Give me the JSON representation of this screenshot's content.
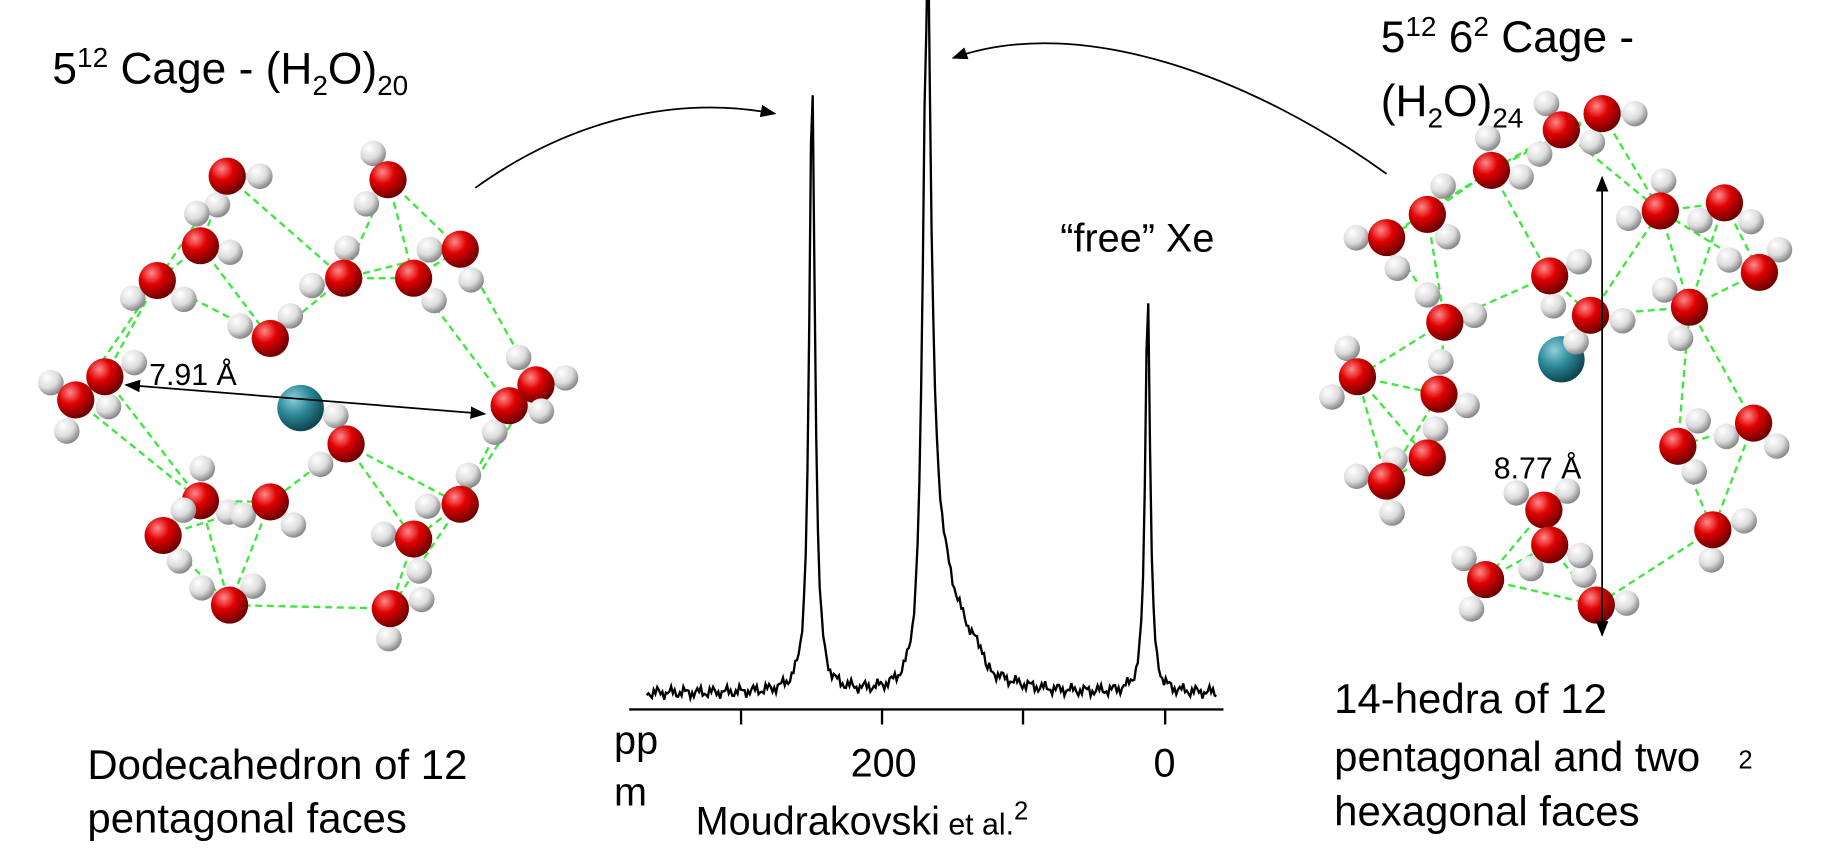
{
  "left_cage": {
    "title": {
      "base": "5",
      "exponent": "12",
      "text": " Cage - (H",
      "sub_h": "2",
      "text2": "O)",
      "sub_n": "20"
    },
    "caption": [
      "Dodecahedron of 12",
      "pentagonal faces"
    ],
    "dimension": "7.91 Å"
  },
  "right_cage": {
    "title": {
      "base": "5",
      "exponent": "12",
      "base2": " 6",
      "exponent2": "2",
      "text": " Cage -",
      "line2": "(H",
      "sub_h": "2",
      "text2": "O)",
      "sub_n": "24"
    },
    "caption": [
      "14-hedra of 12",
      "pentagonal and two",
      "hexagonal faces"
    ],
    "footnote": "2",
    "dimension": "8.77 Å"
  },
  "spectrum": {
    "peak_label": "“free” Xe",
    "axis_ticks": [
      "200",
      "0"
    ],
    "axis_unit": [
      "pp",
      "m"
    ],
    "citation": {
      "author": "Moudrakovski",
      "etal": " et al.",
      "ref": "2"
    }
  }
}
